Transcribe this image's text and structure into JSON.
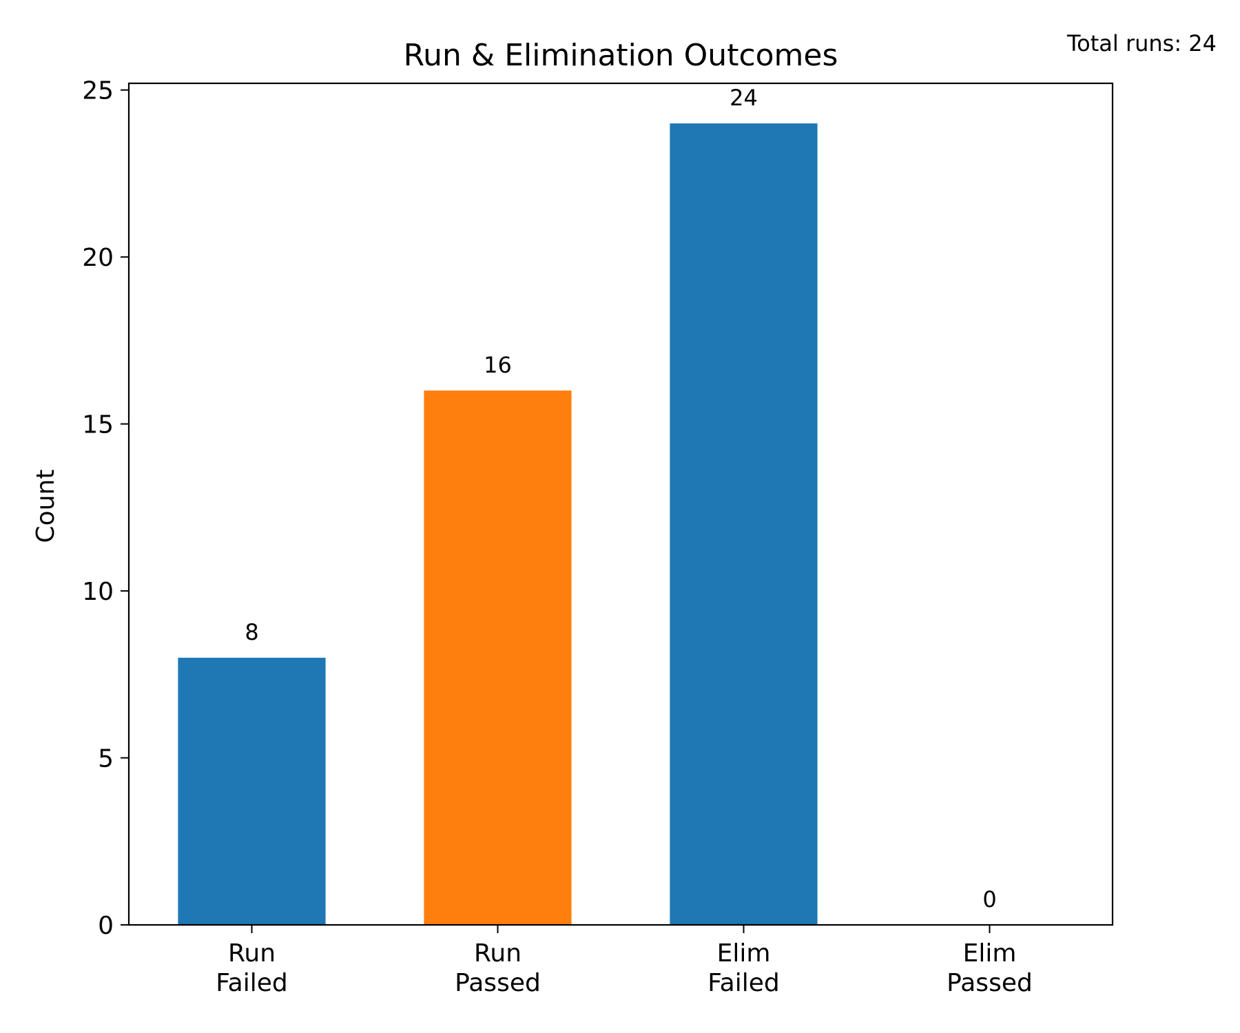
{
  "chart_data": {
    "type": "bar",
    "title": "Run & Elimination Outcomes",
    "annotation": "Total runs: 24",
    "xlabel": "",
    "ylabel": "Count",
    "categories": [
      [
        "Run",
        "Failed"
      ],
      [
        "Run",
        "Passed"
      ],
      [
        "Elim",
        "Failed"
      ],
      [
        "Elim",
        "Passed"
      ]
    ],
    "values": [
      8,
      16,
      24,
      0
    ],
    "bar_colors": [
      "#1f77b4",
      "#ff7f0e",
      "#1f77b4",
      "#1f77b4"
    ],
    "data_labels": [
      "8",
      "16",
      "24",
      "0"
    ],
    "ylim": [
      0,
      25.2
    ],
    "yticks": [
      0,
      5,
      10,
      15,
      20,
      25
    ],
    "grid": false,
    "legend": "none"
  }
}
